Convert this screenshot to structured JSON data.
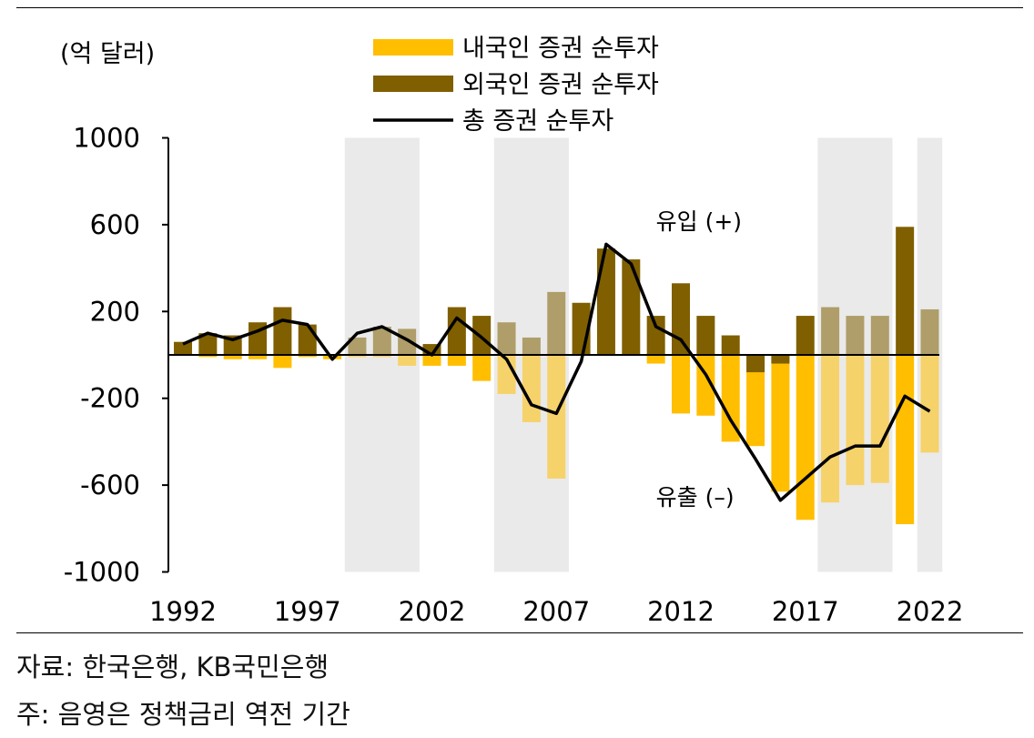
{
  "chart_data": {
    "type": "bar",
    "unit_label": "(억 달러)",
    "x": [
      1992,
      1993,
      1994,
      1995,
      1996,
      1997,
      1998,
      1999,
      2000,
      2001,
      2002,
      2003,
      2004,
      2005,
      2006,
      2007,
      2008,
      2009,
      2010,
      2011,
      2012,
      2013,
      2014,
      2015,
      2016,
      2017,
      2018,
      2019,
      2020,
      2021,
      2022
    ],
    "xticks": [
      "1992",
      "1997",
      "2002",
      "2007",
      "2012",
      "2017",
      "2022"
    ],
    "xtick_values": [
      1992,
      1997,
      2002,
      2007,
      2012,
      2017,
      2022
    ],
    "yticks": [
      "1000",
      "600",
      "200",
      "-200",
      "-600",
      "-1000"
    ],
    "ytick_values": [
      1000,
      600,
      200,
      -200,
      -600,
      -1000
    ],
    "ylim": [
      -1000,
      1000
    ],
    "series": [
      {
        "name": "내국인 증권 순투자",
        "type": "bar",
        "color": "#FFBE00",
        "values": [
          0,
          -10,
          -20,
          -20,
          -60,
          -10,
          -20,
          -10,
          -10,
          -50,
          -50,
          -50,
          -120,
          -180,
          -310,
          -570,
          0,
          0,
          0,
          -40,
          -270,
          -280,
          -400,
          -420,
          -630,
          -760,
          -680,
          -600,
          -590,
          -780,
          -450
        ]
      },
      {
        "name": "외국인 증권 순투자",
        "type": "bar",
        "color": "#7F5F00",
        "values": [
          60,
          100,
          90,
          150,
          220,
          140,
          0,
          80,
          130,
          120,
          50,
          220,
          180,
          150,
          80,
          290,
          240,
          490,
          440,
          180,
          330,
          180,
          90,
          -80,
          -40,
          180,
          220,
          180,
          180,
          590,
          210
        ]
      },
      {
        "name": "총 증권 순투자",
        "type": "line",
        "color": "#000000",
        "values": [
          50,
          100,
          70,
          110,
          160,
          140,
          -20,
          100,
          130,
          70,
          0,
          170,
          80,
          -20,
          -230,
          -270,
          -30,
          510,
          420,
          130,
          70,
          -90,
          -300,
          -480,
          -670,
          -570,
          -470,
          -420,
          -420,
          -190,
          -260
        ]
      }
    ],
    "shaded_periods": [
      [
        1999,
        2001
      ],
      [
        2005,
        2007
      ],
      [
        2018,
        2020
      ],
      [
        2022,
        2022
      ]
    ],
    "annotations": [
      {
        "text": "유입 (+)",
        "x": 2011,
        "y": 620
      },
      {
        "text": "유출 (–)",
        "x": 2011,
        "y": -650
      }
    ],
    "legend_position": "top-center"
  },
  "footer": {
    "source": "자료: 한국은행, KB국민은행",
    "note": "주: 음영은 정책금리 역전 기간"
  }
}
